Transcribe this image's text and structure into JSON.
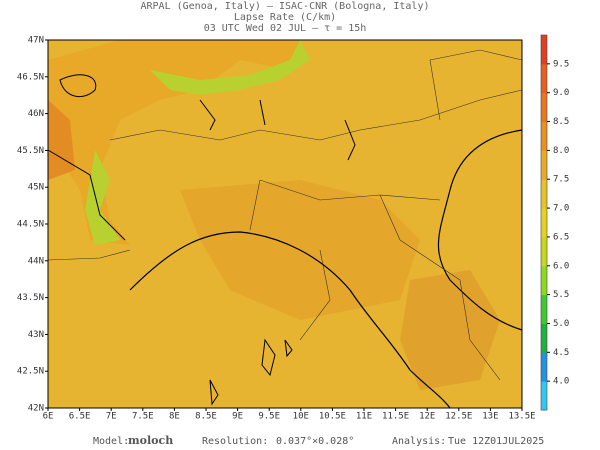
{
  "header": {
    "lines": [
      "ARPAL (Genoa, Italy)  –  ISAC-CNR (Bologna, Italy)",
      "Lapse Rate (C/km)",
      "03 UTC Wed 02 JUL  –  τ = 15h"
    ]
  },
  "map": {
    "lat_labels": [
      "47N",
      "46.5N",
      "46N",
      "45.5N",
      "45N",
      "44.5N",
      "44N",
      "43.5N",
      "43N",
      "42.5N",
      "42N"
    ],
    "lon_labels": [
      "6E",
      "6.5E",
      "7E",
      "7.5E",
      "8E",
      "8.5E",
      "9E",
      "9.5E",
      "10E",
      "10.5E",
      "11E",
      "11.5E",
      "12E",
      "12.5E",
      "13E",
      "13.5E"
    ]
  },
  "colorbar": {
    "range": [
      3.5,
      10
    ],
    "colors": [
      "#30c8f0",
      "#2890e0",
      "#20b040",
      "#40c830",
      "#90d820",
      "#c8d820",
      "#e8d020",
      "#e8c028",
      "#e8a828",
      "#e89020",
      "#e87820",
      "#e86020",
      "#e04020"
    ],
    "ticks": [
      {
        "value": 4,
        "label": "4.0"
      },
      {
        "value": 4.5,
        "label": "4.5"
      },
      {
        "value": 5,
        "label": "5.0"
      },
      {
        "value": 5.5,
        "label": "5.5"
      },
      {
        "value": 6,
        "label": "6.0"
      },
      {
        "value": 6.5,
        "label": "6.5"
      },
      {
        "value": 7,
        "label": "7.0"
      },
      {
        "value": 7.5,
        "label": "7.5"
      },
      {
        "value": 8,
        "label": "8.0"
      },
      {
        "value": 8.5,
        "label": "8.5"
      },
      {
        "value": 9,
        "label": "9.0"
      },
      {
        "value": 9.5,
        "label": "9.5"
      }
    ]
  },
  "footer": {
    "model_label": "Model:",
    "model": "moloch",
    "resolution_label": "Resolution:",
    "resolution": "0.037°×0.028°",
    "analysis_label": "Analysis:",
    "analysis": "Tue 12Z01JUL2025"
  }
}
